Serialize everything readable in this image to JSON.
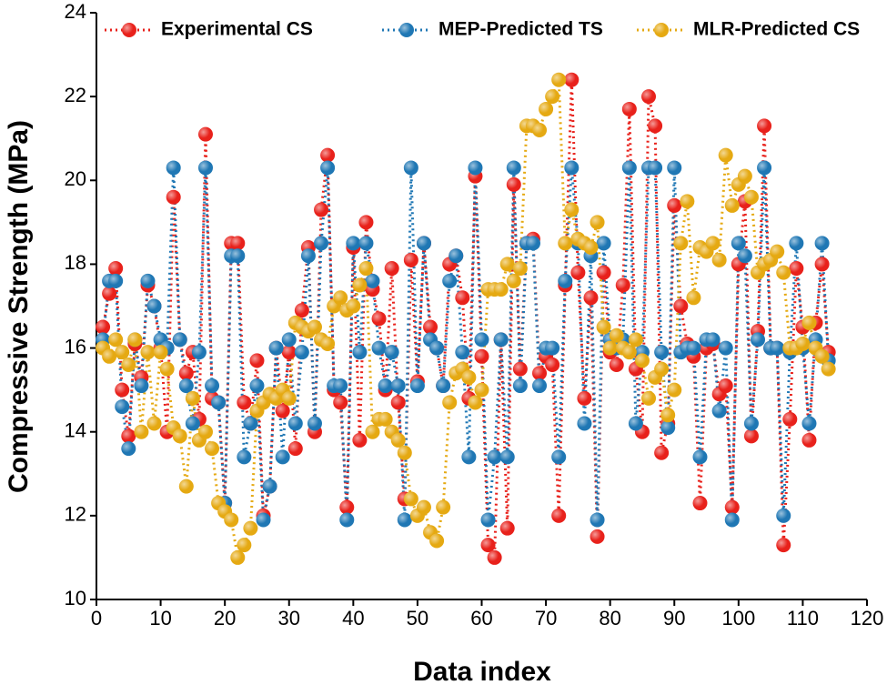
{
  "chart_data": {
    "type": "line",
    "x_label": "Data index",
    "y_label": "Compressive Strength (MPa)",
    "xlim": [
      0,
      120
    ],
    "xticks": [
      0,
      10,
      20,
      30,
      40,
      50,
      60,
      70,
      80,
      90,
      100,
      110,
      120
    ],
    "ylim": [
      10,
      24
    ],
    "yticks": [
      10,
      12,
      14,
      16,
      18,
      20,
      22,
      24
    ],
    "legend": "top",
    "x": [
      1,
      2,
      3,
      4,
      5,
      6,
      7,
      8,
      9,
      10,
      11,
      12,
      13,
      14,
      15,
      16,
      17,
      18,
      19,
      20,
      21,
      22,
      23,
      24,
      25,
      26,
      27,
      28,
      29,
      30,
      31,
      32,
      33,
      34,
      35,
      36,
      37,
      38,
      39,
      40,
      41,
      42,
      43,
      44,
      45,
      46,
      47,
      48,
      49,
      50,
      51,
      52,
      53,
      54,
      55,
      56,
      57,
      58,
      59,
      60,
      61,
      62,
      63,
      64,
      65,
      66,
      67,
      68,
      69,
      70,
      71,
      72,
      73,
      74,
      75,
      76,
      77,
      78,
      79,
      80,
      81,
      82,
      83,
      84,
      85,
      86,
      87,
      88,
      89,
      90,
      91,
      92,
      93,
      94,
      95,
      96,
      97,
      98,
      99,
      100,
      101,
      102,
      103,
      104,
      105,
      106,
      107,
      108,
      109,
      110,
      111,
      112,
      113,
      114
    ],
    "series": [
      {
        "name": "Experimental CS",
        "color": "#e8211b",
        "values": [
          16.5,
          17.3,
          17.9,
          15.0,
          13.9,
          16.1,
          15.3,
          17.5,
          17.0,
          16.0,
          14.0,
          19.6,
          16.2,
          15.4,
          15.9,
          14.3,
          21.1,
          14.8,
          14.7,
          12.3,
          18.5,
          18.5,
          14.7,
          14.2,
          15.7,
          12.0,
          12.7,
          16.0,
          14.5,
          15.9,
          13.6,
          16.9,
          18.4,
          14.0,
          19.3,
          20.6,
          15.0,
          14.7,
          12.2,
          18.4,
          13.8,
          19.0,
          17.4,
          16.7,
          15.0,
          17.9,
          14.7,
          12.4,
          18.1,
          15.2,
          18.5,
          16.5,
          16.0,
          15.1,
          18.0,
          18.2,
          17.2,
          14.8,
          20.1,
          15.8,
          11.3,
          11.0,
          16.2,
          11.7,
          19.9,
          15.5,
          18.5,
          18.6,
          15.4,
          15.8,
          15.6,
          12.0,
          17.5,
          22.4,
          17.8,
          14.8,
          17.2,
          11.5,
          17.8,
          15.9,
          15.6,
          17.5,
          21.7,
          15.5,
          14.0,
          22.0,
          21.3,
          13.5,
          14.2,
          19.4,
          17.0,
          16.1,
          15.8,
          12.3,
          16.0,
          16.1,
          14.9,
          15.1,
          12.2,
          18.0,
          19.5,
          13.9,
          16.4,
          21.3,
          16.0,
          16.0,
          11.3,
          14.3,
          17.9,
          16.5,
          13.8,
          16.6,
          18.0,
          15.9
        ]
      },
      {
        "name": "MEP-Predicted TS",
        "color": "#1f77b4",
        "values": [
          16.2,
          17.6,
          17.6,
          14.6,
          13.6,
          16.2,
          15.1,
          17.6,
          17.0,
          16.2,
          16.0,
          20.3,
          16.2,
          15.1,
          14.2,
          15.9,
          20.3,
          15.1,
          14.7,
          12.3,
          18.2,
          18.2,
          13.4,
          14.2,
          15.1,
          11.9,
          12.7,
          16.0,
          13.4,
          16.2,
          14.2,
          15.9,
          18.2,
          14.2,
          18.5,
          20.3,
          15.1,
          15.1,
          11.9,
          18.5,
          15.9,
          18.5,
          17.6,
          16.0,
          15.1,
          15.9,
          15.1,
          11.9,
          20.3,
          15.1,
          18.5,
          16.2,
          16.0,
          15.1,
          17.6,
          18.2,
          15.9,
          13.4,
          20.3,
          16.2,
          11.9,
          13.4,
          16.2,
          13.4,
          20.3,
          15.1,
          18.5,
          18.5,
          15.1,
          16.0,
          16.0,
          13.4,
          17.6,
          20.3,
          18.5,
          14.2,
          18.2,
          11.9,
          18.5,
          16.2,
          16.0,
          16.2,
          20.3,
          14.2,
          15.9,
          20.3,
          20.3,
          15.9,
          14.1,
          20.3,
          15.9,
          16.0,
          16.0,
          13.4,
          16.2,
          16.2,
          14.5,
          16.0,
          11.9,
          18.5,
          18.2,
          14.2,
          16.2,
          20.3,
          16.0,
          16.0,
          12.0,
          15.9,
          18.5,
          16.0,
          14.2,
          16.2,
          18.5,
          15.7
        ]
      },
      {
        "name": "MLR-Predicted CS",
        "color": "#e5a912",
        "values": [
          16.0,
          15.8,
          16.2,
          15.9,
          15.6,
          16.2,
          14.0,
          15.9,
          14.2,
          15.9,
          15.5,
          14.1,
          13.9,
          12.7,
          14.8,
          13.8,
          14.0,
          13.6,
          12.3,
          12.1,
          11.9,
          11.0,
          11.3,
          11.7,
          14.5,
          14.7,
          14.9,
          14.8,
          15.0,
          14.8,
          16.6,
          16.5,
          16.4,
          16.5,
          16.2,
          16.1,
          17.0,
          17.2,
          16.9,
          17.0,
          17.5,
          17.9,
          14.0,
          14.3,
          14.3,
          14.0,
          13.8,
          13.5,
          12.4,
          12.0,
          12.2,
          11.6,
          11.4,
          12.2,
          14.7,
          15.4,
          15.5,
          15.3,
          14.7,
          15.0,
          17.4,
          17.4,
          17.4,
          18.0,
          17.6,
          17.9,
          21.3,
          21.3,
          21.2,
          21.7,
          22.0,
          22.4,
          18.5,
          19.3,
          18.6,
          18.5,
          18.4,
          19.0,
          16.5,
          16.0,
          16.3,
          16.0,
          15.9,
          16.2,
          15.7,
          14.8,
          15.3,
          15.5,
          14.4,
          15.0,
          18.5,
          19.5,
          17.2,
          18.4,
          18.3,
          18.5,
          18.1,
          20.6,
          19.4,
          19.9,
          20.1,
          19.6,
          17.8,
          18.0,
          18.1,
          18.3,
          17.8,
          16.0,
          16.0,
          16.1,
          16.6,
          16.0,
          15.8,
          15.5
        ]
      }
    ]
  }
}
